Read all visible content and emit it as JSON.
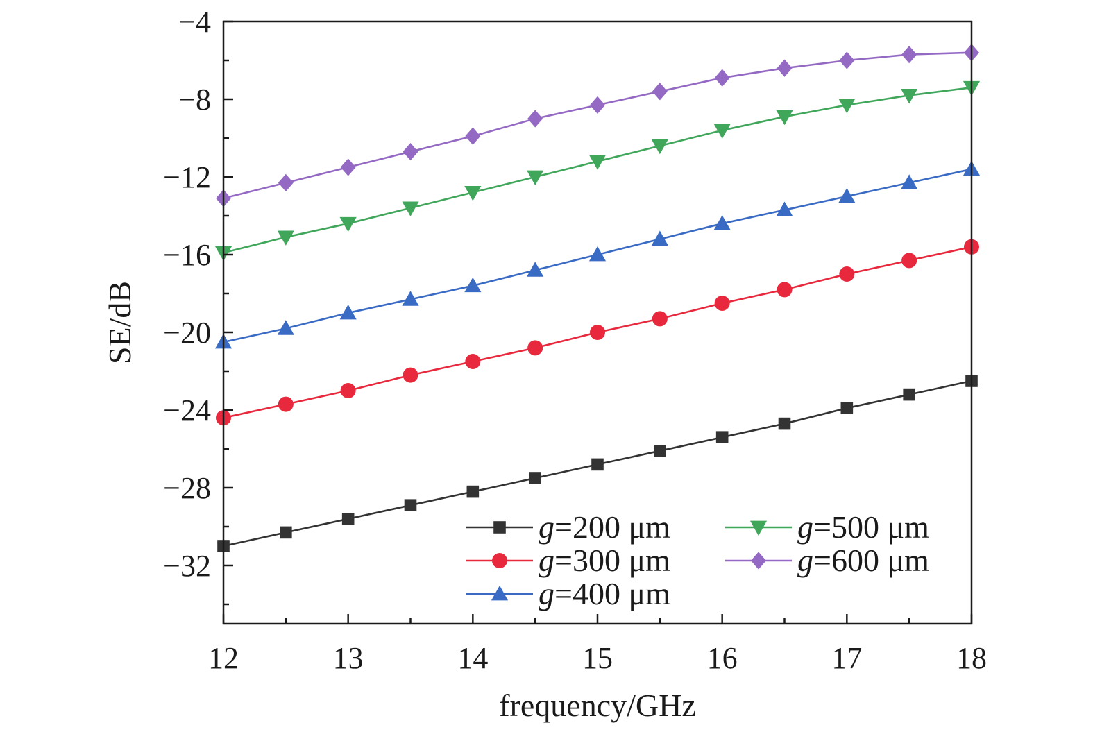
{
  "chart_data": {
    "type": "line",
    "xlabel": "frequency/GHz",
    "ylabel": "SE/dB",
    "xlim": [
      12,
      18
    ],
    "ylim": [
      -35,
      -4
    ],
    "xticks": [
      "12",
      "13",
      "14",
      "15",
      "16",
      "17",
      "18"
    ],
    "yticks": [
      "−4",
      "−8",
      "−12",
      "−16",
      "−20",
      "−24",
      "−28",
      "−32"
    ],
    "legend_position": "bottom-right",
    "x": [
      12,
      12.5,
      13,
      13.5,
      14,
      14.5,
      15,
      15.5,
      16,
      16.5,
      17,
      17.5,
      18
    ],
    "series": [
      {
        "name": "g=200 μm",
        "name_var": "g",
        "name_rest": "=200 μm",
        "color": "#333333",
        "marker": "square",
        "values": [
          -31.0,
          -30.3,
          -29.6,
          -28.9,
          -28.2,
          -27.5,
          -26.8,
          -26.1,
          -25.4,
          -24.7,
          -23.9,
          -23.2,
          -22.5
        ]
      },
      {
        "name": "g=300 μm",
        "name_var": "g",
        "name_rest": "=300 μm",
        "color": "#e8283c",
        "marker": "circle",
        "values": [
          -24.4,
          -23.7,
          -23.0,
          -22.2,
          -21.5,
          -20.8,
          -20.0,
          -19.3,
          -18.5,
          -17.8,
          -17.0,
          -16.3,
          -15.6
        ]
      },
      {
        "name": "g=400 μm",
        "name_var": "g",
        "name_rest": "=400 μm",
        "color": "#3a6bc4",
        "marker": "triangle-up",
        "values": [
          -20.5,
          -19.8,
          -19.0,
          -18.3,
          -17.6,
          -16.8,
          -16.0,
          -15.2,
          -14.4,
          -13.7,
          -13.0,
          -12.3,
          -11.6
        ]
      },
      {
        "name": "g=500 μm",
        "name_var": "g",
        "name_rest": "=500 μm",
        "color": "#3fa65a",
        "marker": "triangle-down",
        "values": [
          -15.9,
          -15.1,
          -14.4,
          -13.6,
          -12.8,
          -12.0,
          -11.2,
          -10.4,
          -9.6,
          -8.9,
          -8.3,
          -7.8,
          -7.4
        ]
      },
      {
        "name": "g=600 μm",
        "name_var": "g",
        "name_rest": "=600 μm",
        "color": "#9469c3",
        "marker": "diamond",
        "values": [
          -13.1,
          -12.3,
          -11.5,
          -10.7,
          -9.9,
          -9.0,
          -8.3,
          -7.6,
          -6.9,
          -6.4,
          -6.0,
          -5.7,
          -5.6
        ]
      }
    ]
  }
}
